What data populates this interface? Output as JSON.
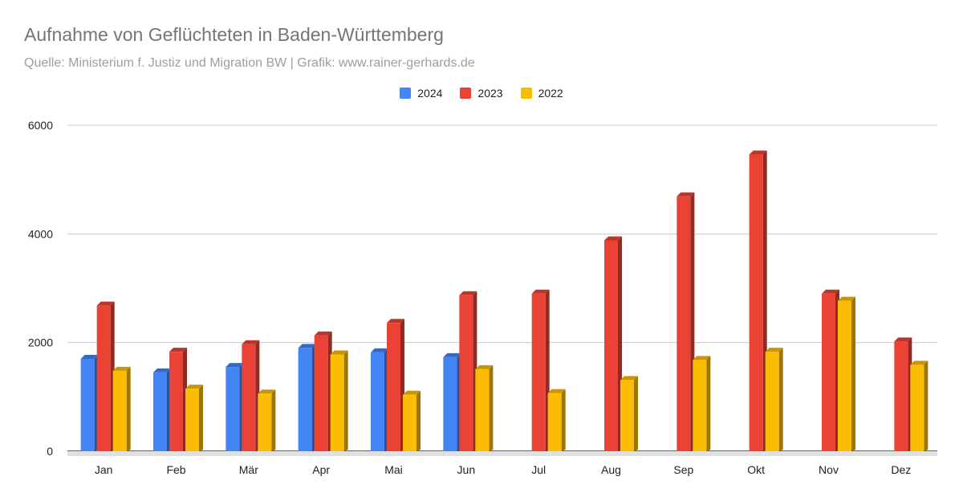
{
  "chart_data": {
    "type": "bar",
    "title": "Aufnahme von Geflüchteten in Baden-Württemberg",
    "subtitle": "Quelle: Ministerium f. Justiz und Migration BW  |   Grafik: www.rainer-gerhards.de",
    "categories": [
      "Jan",
      "Feb",
      "Mär",
      "Apr",
      "Mai",
      "Jun",
      "Jul",
      "Aug",
      "Sep",
      "Okt",
      "Nov",
      "Dez"
    ],
    "series": [
      {
        "name": "2024",
        "color": "#4285f4",
        "values": [
          1700,
          1450,
          1550,
          1900,
          1820,
          1730,
          null,
          null,
          null,
          null,
          null,
          null
        ]
      },
      {
        "name": "2023",
        "color": "#ea4335",
        "values": [
          2680,
          1830,
          1970,
          2130,
          2360,
          2870,
          2900,
          3880,
          4690,
          5460,
          2900,
          2020
        ]
      },
      {
        "name": "2022",
        "color": "#fbbc04",
        "values": [
          1480,
          1150,
          1060,
          1780,
          1040,
          1510,
          1070,
          1310,
          1680,
          1830,
          2770,
          1590
        ]
      }
    ],
    "yticks": [
      0,
      2000,
      4000,
      6000
    ],
    "ylim": [
      0,
      6000
    ],
    "grid": true,
    "legend_position": "top-center",
    "xlabel": "",
    "ylabel": ""
  }
}
